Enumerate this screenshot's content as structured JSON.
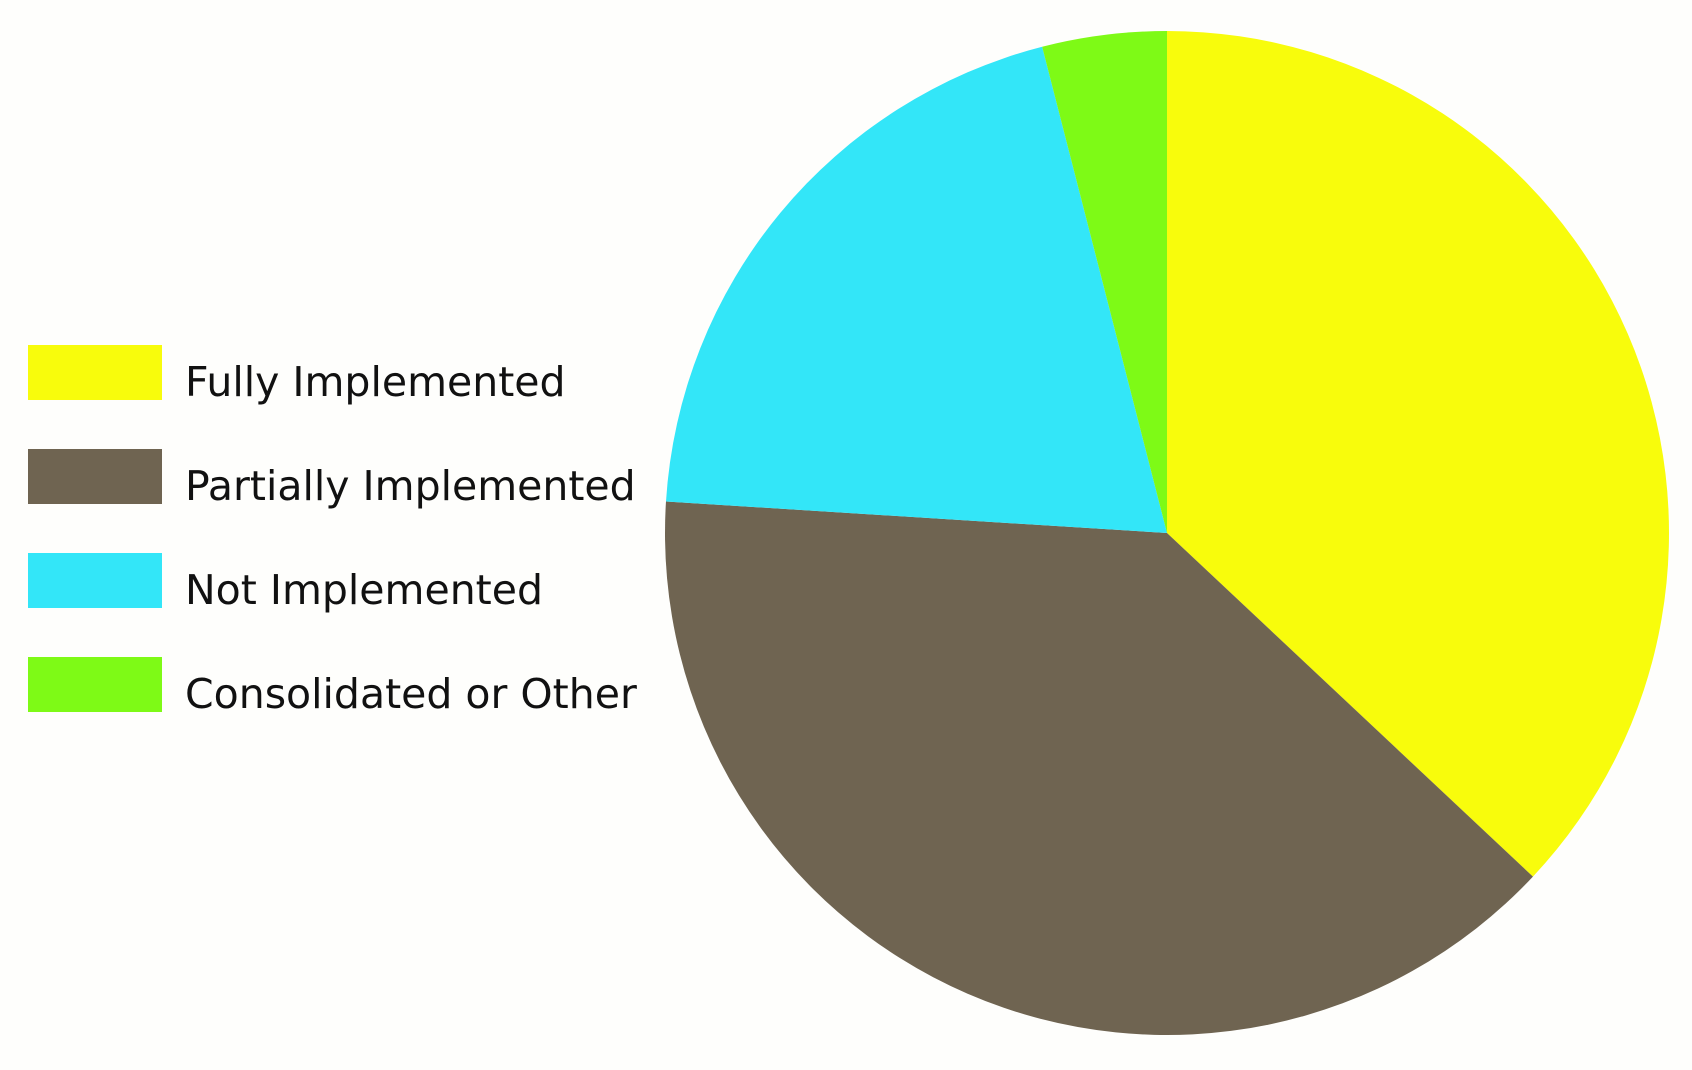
{
  "chart_data": {
    "type": "pie",
    "categories": [
      "Fully Implemented",
      "Partially Implemented",
      "Not Implemented",
      "Consolidated or Other"
    ],
    "values": [
      37,
      39,
      20,
      4
    ],
    "colors": [
      "#f8fc0c",
      "#6f6451",
      "#33e6f8",
      "#7efa16"
    ],
    "start_angle": 0,
    "direction": "clockwise",
    "legend": "left"
  }
}
